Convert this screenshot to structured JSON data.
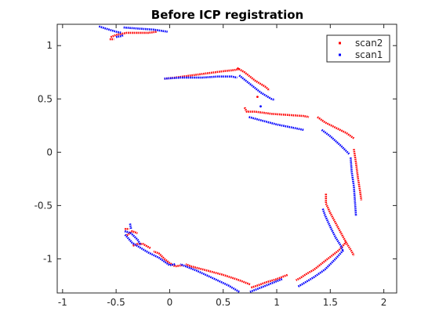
{
  "chart_data": {
    "type": "scatter",
    "title": "Before ICP registration",
    "xlabel": "",
    "ylabel": "",
    "xlim": [
      -1.05,
      2.12
    ],
    "ylim": [
      -1.32,
      1.2
    ],
    "x_ticks": [
      -1,
      -0.5,
      0,
      0.5,
      1,
      1.5,
      2
    ],
    "x_tick_labels": [
      "-1",
      "-0.5",
      "0",
      "0.5",
      "1",
      "1.5",
      "2"
    ],
    "y_ticks": [
      -1,
      -0.5,
      0,
      0.5,
      1
    ],
    "y_tick_labels": [
      "-1",
      "-0.5",
      "0",
      "0.5",
      "1"
    ],
    "grid": false,
    "legend_position": "top-right",
    "series": [
      {
        "name": "scan2",
        "color": "#ff0000",
        "segments": [
          [
            [
              -0.55,
              1.08
            ],
            [
              -0.5,
              1.1
            ],
            [
              -0.4,
              1.12
            ],
            [
              -0.3,
              1.12
            ],
            [
              -0.2,
              1.12
            ],
            [
              -0.12,
              1.13
            ]
          ],
          [
            [
              -0.56,
              1.06
            ],
            [
              -0.52,
              1.06
            ]
          ],
          [
            [
              -0.05,
              0.69
            ],
            [
              0.05,
              0.7
            ],
            [
              0.2,
              0.72
            ],
            [
              0.35,
              0.74
            ],
            [
              0.5,
              0.76
            ],
            [
              0.6,
              0.77
            ],
            [
              0.65,
              0.78
            ]
          ],
          [
            [
              0.63,
              0.79
            ],
            [
              0.7,
              0.75
            ],
            [
              0.8,
              0.67
            ],
            [
              0.9,
              0.61
            ],
            [
              0.93,
              0.58
            ]
          ],
          [
            [
              0.82,
              0.52
            ]
          ],
          [
            [
              0.7,
              0.42
            ],
            [
              0.72,
              0.38
            ],
            [
              0.8,
              0.38
            ],
            [
              0.95,
              0.36
            ],
            [
              1.1,
              0.35
            ],
            [
              1.25,
              0.34
            ],
            [
              1.3,
              0.33
            ]
          ],
          [
            [
              1.38,
              0.33
            ],
            [
              1.45,
              0.28
            ],
            [
              1.55,
              0.23
            ],
            [
              1.65,
              0.18
            ],
            [
              1.72,
              0.13
            ]
          ],
          [
            [
              1.72,
              0.03
            ],
            [
              1.74,
              -0.1
            ],
            [
              1.76,
              -0.25
            ],
            [
              1.78,
              -0.38
            ],
            [
              1.79,
              -0.45
            ]
          ],
          [
            [
              1.46,
              -0.39
            ],
            [
              1.46,
              -0.48
            ],
            [
              1.5,
              -0.57
            ],
            [
              1.58,
              -0.72
            ],
            [
              1.65,
              -0.85
            ],
            [
              1.7,
              -0.93
            ],
            [
              1.72,
              -0.97
            ]
          ],
          [
            [
              1.65,
              -0.84
            ],
            [
              1.58,
              -0.92
            ],
            [
              1.45,
              -1.02
            ],
            [
              1.35,
              -1.1
            ],
            [
              1.28,
              -1.14
            ],
            [
              1.22,
              -1.18
            ],
            [
              1.18,
              -1.2
            ]
          ],
          [
            [
              1.1,
              -1.15
            ],
            [
              1.0,
              -1.19
            ],
            [
              0.9,
              -1.22
            ],
            [
              0.82,
              -1.25
            ],
            [
              0.76,
              -1.27
            ]
          ],
          [
            [
              0.75,
              -1.24
            ],
            [
              0.65,
              -1.2
            ],
            [
              0.5,
              -1.15
            ],
            [
              0.35,
              -1.11
            ],
            [
              0.2,
              -1.07
            ],
            [
              0.15,
              -1.05
            ]
          ],
          [
            [
              0.12,
              -1.06
            ],
            [
              0.05,
              -1.07
            ],
            [
              0.0,
              -1.04
            ],
            [
              -0.05,
              -1.0
            ],
            [
              -0.1,
              -0.95
            ],
            [
              -0.15,
              -0.93
            ]
          ],
          [
            [
              -0.18,
              -0.9
            ],
            [
              -0.25,
              -0.86
            ],
            [
              -0.3,
              -0.86
            ],
            [
              -0.35,
              -0.88
            ]
          ],
          [
            [
              -0.4,
              -0.78
            ],
            [
              -0.35,
              -0.74
            ],
            [
              -0.3,
              -0.76
            ]
          ],
          [
            [
              -0.42,
              -0.72
            ],
            [
              -0.38,
              -0.72
            ]
          ]
        ]
      },
      {
        "name": "scan1",
        "color": "#0000ff",
        "segments": [
          [
            [
              -0.66,
              1.18
            ],
            [
              -0.6,
              1.16
            ],
            [
              -0.5,
              1.13
            ],
            [
              -0.45,
              1.12
            ]
          ],
          [
            [
              -0.5,
              1.08
            ],
            [
              -0.45,
              1.09
            ],
            [
              -0.43,
              1.1
            ]
          ],
          [
            [
              -0.43,
              1.17
            ],
            [
              -0.3,
              1.16
            ],
            [
              -0.15,
              1.15
            ],
            [
              -0.02,
              1.13
            ]
          ],
          [
            [
              -0.05,
              0.69
            ],
            [
              0.1,
              0.7
            ],
            [
              0.3,
              0.7
            ],
            [
              0.45,
              0.71
            ],
            [
              0.58,
              0.71
            ],
            [
              0.63,
              0.7
            ]
          ],
          [
            [
              0.65,
              0.72
            ],
            [
              0.75,
              0.64
            ],
            [
              0.85,
              0.56
            ],
            [
              0.95,
              0.5
            ],
            [
              0.98,
              0.49
            ]
          ],
          [
            [
              0.85,
              0.43
            ]
          ],
          [
            [
              0.74,
              0.33
            ],
            [
              0.85,
              0.3
            ],
            [
              1.0,
              0.26
            ],
            [
              1.15,
              0.23
            ],
            [
              1.25,
              0.21
            ]
          ],
          [
            [
              1.42,
              0.21
            ],
            [
              1.5,
              0.15
            ],
            [
              1.6,
              0.06
            ],
            [
              1.65,
              0.01
            ],
            [
              1.68,
              -0.02
            ]
          ],
          [
            [
              1.69,
              -0.05
            ],
            [
              1.7,
              -0.18
            ],
            [
              1.72,
              -0.32
            ],
            [
              1.73,
              -0.45
            ],
            [
              1.74,
              -0.6
            ]
          ],
          [
            [
              1.43,
              -0.53
            ],
            [
              1.45,
              -0.59
            ],
            [
              1.5,
              -0.7
            ],
            [
              1.55,
              -0.8
            ],
            [
              1.6,
              -0.88
            ],
            [
              1.62,
              -0.93
            ]
          ],
          [
            [
              1.62,
              -0.92
            ],
            [
              1.55,
              -1.0
            ],
            [
              1.45,
              -1.1
            ],
            [
              1.35,
              -1.17
            ],
            [
              1.25,
              -1.23
            ],
            [
              1.2,
              -1.26
            ]
          ],
          [
            [
              1.05,
              -1.19
            ],
            [
              1.0,
              -1.21
            ],
            [
              0.9,
              -1.25
            ],
            [
              0.8,
              -1.29
            ],
            [
              0.75,
              -1.31
            ]
          ],
          [
            [
              0.65,
              -1.31
            ],
            [
              0.55,
              -1.25
            ],
            [
              0.4,
              -1.18
            ],
            [
              0.25,
              -1.11
            ],
            [
              0.15,
              -1.07
            ],
            [
              0.1,
              -1.05
            ]
          ],
          [
            [
              0.05,
              -1.05
            ],
            [
              0.0,
              -1.06
            ],
            [
              -0.1,
              -0.99
            ],
            [
              -0.2,
              -0.94
            ],
            [
              -0.3,
              -0.88
            ],
            [
              -0.35,
              -0.85
            ],
            [
              -0.42,
              -0.77
            ]
          ],
          [
            [
              -0.42,
              -0.74
            ],
            [
              -0.36,
              -0.76
            ],
            [
              -0.3,
              -0.82
            ],
            [
              -0.27,
              -0.87
            ]
          ],
          [
            [
              -0.37,
              -0.67
            ],
            [
              -0.36,
              -0.72
            ]
          ]
        ]
      }
    ]
  }
}
